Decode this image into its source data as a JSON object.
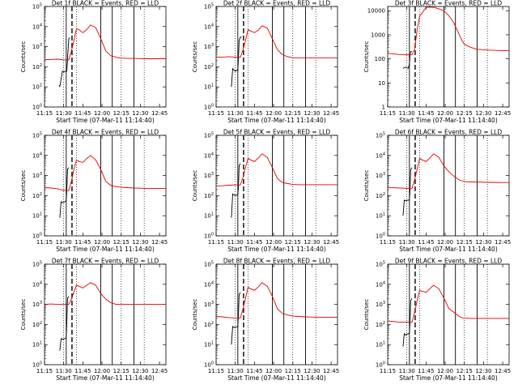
{
  "figure": {
    "colors": {
      "events": "#000000",
      "lld": "#e00000",
      "axes": "#000000",
      "background": "#ffffff"
    },
    "xlabel": "Start Time (07-Mar-11 11:14:40)",
    "ylabel": "Counts/sec",
    "x_tick_labels": [
      "11:15",
      "11:30",
      "11:45",
      "12:00",
      "12:15",
      "12:30",
      "12:45"
    ]
  },
  "chart_data": [
    {
      "type": "line",
      "title": "Det 1f BLACK = Events, RED = LLD",
      "xlabel": "Start Time (07-Mar-11 11:14:40)",
      "ylabel": "Counts/sec",
      "x_units": "minutes after 11:14:40",
      "xlim": [
        0,
        95
      ],
      "ylim": [
        1,
        100000
      ],
      "yscale": "log",
      "ytick_labels": [
        "10^0",
        "10^1",
        "10^2",
        "10^3",
        "10^4",
        "10^5"
      ],
      "vlines_dotted": [
        15,
        25,
        60,
        78
      ],
      "vlines_solid": [
        17,
        44,
        53,
        70
      ],
      "vline_dashed": 21.5,
      "series": [
        {
          "name": "Events",
          "x": [
            11.6,
            12,
            14,
            15.5,
            16.5,
            17,
            17.5,
            18,
            19,
            19.8
          ],
          "y": [
            12,
            10,
            60,
            55,
            60,
            58,
            65,
            250,
            2500,
            2800
          ]
        },
        {
          "name": "LLD",
          "x": [
            0,
            5,
            10,
            15,
            19,
            21,
            23,
            25,
            27,
            30,
            33,
            36,
            40,
            44,
            48,
            52,
            56,
            58,
            60,
            65,
            70,
            80,
            90,
            95
          ],
          "y": [
            230,
            230,
            240,
            220,
            220,
            600,
            2000,
            8000,
            7000,
            5000,
            7000,
            12000,
            9000,
            2500,
            600,
            350,
            300,
            280,
            270,
            260,
            260,
            250,
            250,
            250
          ]
        }
      ]
    },
    {
      "type": "line",
      "title": "Det 2f BLACK = Events, RED = LLD",
      "xlabel": "Start Time (07-Mar-11 11:14:40)",
      "ylabel": "Counts/sec",
      "x_units": "minutes after 11:14:40",
      "xlim": [
        0,
        95
      ],
      "ylim": [
        1,
        100000
      ],
      "yscale": "log",
      "ytick_labels": [
        "10^0",
        "10^1",
        "10^2",
        "10^3",
        "10^4",
        "10^5"
      ],
      "vlines_dotted": [
        15,
        25,
        60,
        78
      ],
      "vlines_solid": [
        17,
        44,
        53,
        70
      ],
      "vline_dashed": 21.5,
      "series": [
        {
          "name": "Events",
          "x": [
            12,
            13,
            15,
            16.5,
            17,
            17.5,
            18,
            19,
            20
          ],
          "y": [
            10,
            80,
            60,
            70,
            65,
            250,
            2000,
            3000,
            3000
          ]
        },
        {
          "name": "LLD",
          "x": [
            0,
            5,
            10,
            15,
            19,
            21,
            23,
            25,
            27,
            30,
            33,
            36,
            40,
            44,
            48,
            52,
            56,
            58,
            60,
            65,
            70,
            80,
            90,
            95
          ],
          "y": [
            300,
            300,
            320,
            300,
            300,
            700,
            2000,
            7000,
            6000,
            5000,
            6500,
            11000,
            8500,
            2500,
            700,
            400,
            320,
            300,
            280,
            280,
            280,
            280,
            280,
            280
          ]
        }
      ]
    },
    {
      "type": "line",
      "title": "Det 3f BLACK = Events, RED = LLD",
      "xlabel": "Start Time (07-Mar-11 11:14:40)",
      "ylabel": "Counts/sec",
      "x_units": "minutes after 11:14:40",
      "xlim": [
        0,
        95
      ],
      "ylim": [
        1,
        15000
      ],
      "yscale": "log",
      "ytick_labels": [
        "1",
        "10",
        "100",
        "1000",
        "10000"
      ],
      "vlines_dotted": [
        15,
        25,
        60,
        78
      ],
      "vlines_solid": [
        17,
        44,
        53,
        70
      ],
      "vline_dashed": 21.5,
      "series": [
        {
          "name": "Events",
          "x": [
            12,
            14,
            16,
            17,
            17.5,
            18,
            19
          ],
          "y": [
            40,
            45,
            40,
            60,
            150,
            200,
            200
          ]
        },
        {
          "name": "LLD",
          "x": [
            0,
            5,
            10,
            15,
            19,
            21,
            23,
            25,
            27,
            30,
            33,
            36,
            40,
            44,
            48,
            52,
            56,
            58,
            60,
            65,
            70,
            80,
            90,
            95
          ],
          "y": [
            170,
            160,
            150,
            150,
            150,
            250,
            1500,
            6000,
            8000,
            14000,
            14000,
            14000,
            12000,
            10000,
            6000,
            3000,
            1000,
            600,
            400,
            300,
            250,
            230,
            220,
            220
          ]
        }
      ]
    },
    {
      "type": "line",
      "title": "Det 4f BLACK = Events, RED = LLD",
      "xlabel": "Start Time (07-Mar-11 11:14:40)",
      "ylabel": "Counts/sec",
      "x_units": "minutes after 11:14:40",
      "xlim": [
        0,
        95
      ],
      "ylim": [
        1,
        100000
      ],
      "yscale": "log",
      "ytick_labels": [
        "10^0",
        "10^1",
        "10^2",
        "10^3",
        "10^4",
        "10^5"
      ],
      "vlines_dotted": [
        15,
        25,
        60,
        78
      ],
      "vlines_solid": [
        17,
        44,
        53,
        70
      ],
      "vline_dashed": 21.5,
      "series": [
        {
          "name": "Events",
          "x": [
            12,
            13,
            14,
            16,
            17,
            17.5,
            18,
            19
          ],
          "y": [
            8,
            50,
            45,
            50,
            55,
            200,
            2000,
            2500
          ]
        },
        {
          "name": "LLD",
          "x": [
            0,
            5,
            10,
            15,
            19,
            21,
            23,
            25,
            27,
            30,
            33,
            36,
            40,
            44,
            48,
            52,
            56,
            58,
            60,
            65,
            70,
            80,
            90,
            95
          ],
          "y": [
            250,
            240,
            220,
            180,
            180,
            500,
            2000,
            6000,
            5000,
            4500,
            7000,
            10000,
            6000,
            2000,
            500,
            320,
            280,
            270,
            260,
            250,
            240,
            230,
            230,
            230
          ]
        }
      ]
    },
    {
      "type": "line",
      "title": "Det 5f BLACK = Events, RED = LLD",
      "xlabel": "Start Time (07-Mar-11 11:14:40)",
      "ylabel": "Counts/sec",
      "x_units": "minutes after 11:14:40",
      "xlim": [
        0,
        95
      ],
      "ylim": [
        1,
        100000
      ],
      "yscale": "log",
      "ytick_labels": [
        "10^0",
        "10^1",
        "10^2",
        "10^3",
        "10^4",
        "10^5"
      ],
      "vlines_dotted": [
        15,
        25,
        60,
        78
      ],
      "vlines_solid": [
        17,
        44,
        53,
        70
      ],
      "vline_dashed": 21.5,
      "series": [
        {
          "name": "Events",
          "x": [
            12,
            13,
            15,
            16.5,
            17,
            17.5,
            18,
            19
          ],
          "y": [
            8,
            120,
            100,
            110,
            115,
            250,
            3000,
            4000
          ]
        },
        {
          "name": "LLD",
          "x": [
            0,
            5,
            10,
            15,
            19,
            21,
            23,
            25,
            27,
            30,
            33,
            36,
            40,
            44,
            48,
            52,
            56,
            58,
            60,
            65,
            70,
            80,
            90,
            95
          ],
          "y": [
            300,
            310,
            330,
            340,
            340,
            800,
            2500,
            7000,
            6000,
            5000,
            7500,
            12000,
            8000,
            2500,
            700,
            450,
            400,
            380,
            360,
            350,
            350,
            350,
            350,
            350
          ]
        }
      ]
    },
    {
      "type": "line",
      "title": "Det 6f BLACK = Events, RED = LLD",
      "xlabel": "Start Time (07-Mar-11 11:14:40)",
      "ylabel": "Counts/sec",
      "x_units": "minutes after 11:14:40",
      "xlim": [
        0,
        95
      ],
      "ylim": [
        1,
        100000
      ],
      "yscale": "log",
      "ytick_labels": [
        "10^0",
        "10^1",
        "10^2",
        "10^3",
        "10^4",
        "10^5"
      ],
      "vlines_dotted": [
        15,
        25,
        60,
        78
      ],
      "vlines_solid": [
        17,
        44,
        53,
        70
      ],
      "vline_dashed": 21.5,
      "series": [
        {
          "name": "Events",
          "x": [
            12,
            13,
            14,
            16,
            17,
            17.5,
            18,
            19
          ],
          "y": [
            10,
            60,
            55,
            60,
            60,
            200,
            2000,
            2500
          ]
        },
        {
          "name": "LLD",
          "x": [
            0,
            5,
            10,
            15,
            19,
            21,
            23,
            25,
            27,
            30,
            33,
            36,
            40,
            44,
            48,
            52,
            56,
            58,
            60,
            65,
            70,
            80,
            90,
            95
          ],
          "y": [
            250,
            245,
            240,
            230,
            230,
            600,
            2000,
            7000,
            6000,
            5000,
            7500,
            12000,
            8000,
            3000,
            1500,
            900,
            600,
            550,
            500,
            480,
            470,
            460,
            450,
            450
          ]
        }
      ]
    },
    {
      "type": "line",
      "title": "Det 7f BLACK = Events, RED = LLD",
      "xlabel": "Start Time (07-Mar-11 11:14:40)",
      "ylabel": "Counts/sec",
      "x_units": "minutes after 11:14:40",
      "xlim": [
        0,
        95
      ],
      "ylim": [
        1,
        100000
      ],
      "yscale": "log",
      "ytick_labels": [
        "10^0",
        "10^1",
        "10^2",
        "10^3",
        "10^4",
        "10^5"
      ],
      "vlines_dotted": [
        15,
        25,
        60,
        78
      ],
      "vlines_solid": [
        17,
        44,
        53,
        70
      ],
      "vline_dashed": 21.5,
      "series": [
        {
          "name": "Events",
          "x": [
            12,
            13,
            14,
            16,
            17,
            17.5,
            18,
            19
          ],
          "y": [
            5,
            20,
            18,
            20,
            22,
            150,
            2000,
            2500
          ]
        },
        {
          "name": "LLD",
          "x": [
            0,
            5,
            10,
            15,
            19,
            21,
            23,
            25,
            27,
            30,
            33,
            36,
            40,
            44,
            48,
            52,
            56,
            58,
            60,
            65,
            70,
            80,
            90,
            95
          ],
          "y": [
            1000,
            1050,
            1000,
            1000,
            1000,
            1800,
            4000,
            9000,
            8000,
            6500,
            9000,
            12000,
            9000,
            3500,
            1800,
            1200,
            1000,
            1000,
            1000,
            1000,
            1000,
            1000,
            1000,
            1000
          ]
        }
      ]
    },
    {
      "type": "line",
      "title": "Det 8f BLACK = Events, RED = LLD",
      "xlabel": "Start Time (07-Mar-11 11:14:40)",
      "ylabel": "Counts/sec",
      "x_units": "minutes after 11:14:40",
      "xlim": [
        0,
        95
      ],
      "ylim": [
        1,
        100000
      ],
      "yscale": "log",
      "ytick_labels": [
        "10^0",
        "10^1",
        "10^2",
        "10^3",
        "10^4",
        "10^5"
      ],
      "vlines_dotted": [
        15,
        25,
        60,
        78
      ],
      "vlines_solid": [
        17,
        44,
        53,
        70
      ],
      "vline_dashed": 21.5,
      "series": [
        {
          "name": "Events",
          "x": [
            12,
            13,
            14,
            16,
            17,
            17.5,
            18,
            19
          ],
          "y": [
            10,
            80,
            70,
            75,
            80,
            300,
            3000,
            4000
          ]
        },
        {
          "name": "LLD",
          "x": [
            0,
            5,
            10,
            15,
            19,
            21,
            23,
            25,
            27,
            30,
            33,
            36,
            40,
            44,
            48,
            52,
            56,
            58,
            60,
            65,
            70,
            80,
            90,
            95
          ],
          "y": [
            250,
            240,
            220,
            210,
            210,
            600,
            2000,
            7000,
            6000,
            5000,
            7500,
            12000,
            8000,
            2500,
            600,
            350,
            300,
            280,
            260,
            250,
            240,
            230,
            230,
            230
          ]
        }
      ]
    },
    {
      "type": "line",
      "title": "Det 9f BLACK = Events, RED = LLD",
      "xlabel": "Start Time (07-Mar-11 11:14:40)",
      "ylabel": "Counts/sec",
      "x_units": "minutes after 11:14:40",
      "xlim": [
        0,
        95
      ],
      "ylim": [
        1,
        100000
      ],
      "yscale": "log",
      "ytick_labels": [
        "10^0",
        "10^1",
        "10^2",
        "10^3",
        "10^4",
        "10^5"
      ],
      "vlines_dotted": [
        15,
        25,
        60,
        78
      ],
      "vlines_solid": [
        17,
        44,
        53,
        70
      ],
      "vline_dashed": 21.5,
      "series": [
        {
          "name": "Events",
          "x": [
            12,
            13,
            14,
            16,
            17,
            17.5,
            18,
            19
          ],
          "y": [
            8,
            35,
            30,
            35,
            35,
            150,
            1500,
            2000
          ]
        },
        {
          "name": "LLD",
          "x": [
            0,
            5,
            10,
            15,
            19,
            21,
            23,
            25,
            27,
            30,
            33,
            36,
            40,
            44,
            48,
            52,
            56,
            58,
            60,
            65,
            70,
            80,
            90,
            95
          ],
          "y": [
            150,
            140,
            130,
            130,
            130,
            400,
            1500,
            5000,
            4500,
            4000,
            6000,
            9000,
            6000,
            2000,
            600,
            400,
            250,
            220,
            210,
            200,
            200,
            200,
            200,
            200
          ]
        }
      ]
    }
  ]
}
